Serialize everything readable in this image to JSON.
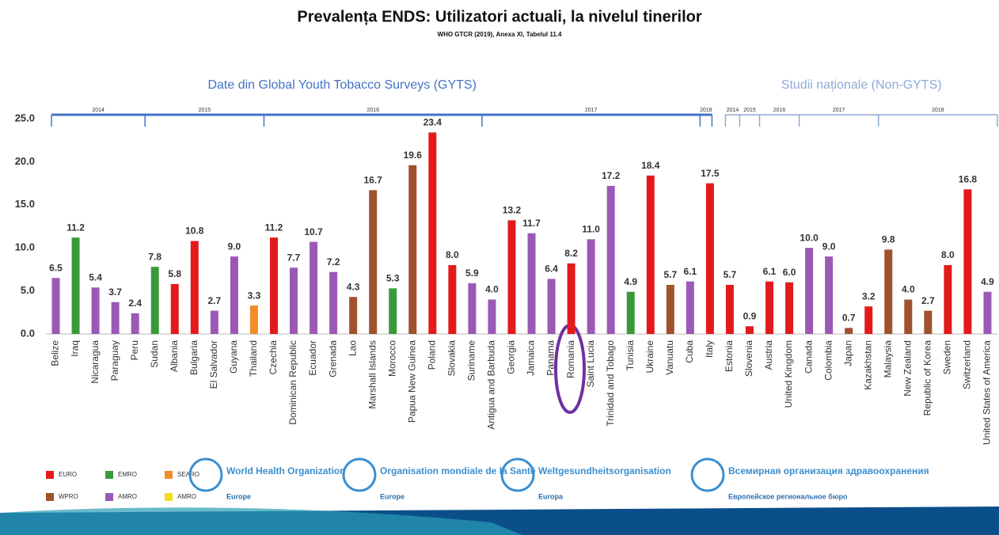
{
  "chart_data": {
    "type": "bar",
    "title": "Prevalența ENDS: Utilizatori actuali, la nivelul tinerilor",
    "subtitle": "WHO GTCR (2019), Anexa XI, Tabelul 11.4",
    "categories": [
      "Belize",
      "Iraq",
      "Nicaragua",
      "Paraguay",
      "Peru",
      "Sudan",
      "Albania",
      "Bulgaria",
      "El Salvador",
      "Guyana",
      "Thailand",
      "Czechia",
      "Dominican Republic",
      "Ecuador",
      "Grenada",
      "Lao",
      "Marshall Islands",
      "Morocco",
      "Papua New Guinea",
      "Poland",
      "Slovakia",
      "Suriname",
      "Antigua and Barbuda",
      "Georgia",
      "Jamaica",
      "Panama",
      "Romania",
      "Saint Lucia",
      "Trinidad and Tobago",
      "Tunisia",
      "Ukraine",
      "Vanuatu",
      "Cuba",
      "Italy",
      "Estonia",
      "Slovenia",
      "Austria",
      "United Kingdom",
      "Canada",
      "Colombia",
      "Japan",
      "Kazakhstan",
      "Malaysia",
      "New Zealand",
      "Republic of Korea",
      "Sweden",
      "Switzerland",
      "United States of America"
    ],
    "values": [
      6.5,
      11.2,
      5.4,
      3.7,
      2.4,
      7.8,
      5.8,
      10.8,
      2.7,
      9.0,
      3.3,
      11.2,
      7.7,
      10.7,
      7.2,
      4.3,
      16.7,
      5.3,
      19.6,
      23.4,
      8.0,
      5.9,
      4.0,
      13.2,
      11.7,
      6.4,
      8.2,
      11.0,
      17.2,
      4.9,
      18.4,
      5.7,
      6.1,
      17.5,
      5.7,
      0.9,
      6.1,
      6.0,
      10.0,
      9.0,
      0.7,
      3.2,
      9.8,
      4.0,
      2.7,
      8.0,
      16.8,
      4.9
    ],
    "value_labels": [
      "6.5",
      "11.2",
      "5.4",
      "3.7",
      "2.4",
      "7.8",
      "5.8",
      "10.8",
      "2.7",
      "9.0",
      "3.3",
      "11.2",
      "7.7",
      "10.7",
      "7.2",
      "4.3",
      "16.7",
      "5.3",
      "19.6",
      "23.4",
      "8.0",
      "5.9",
      "4.0",
      "13.2",
      "11.7",
      "6.4",
      "8.2",
      "11.0",
      "17.2",
      "4.9",
      "18.4",
      "5.7",
      "6.1",
      "17.5",
      "5.7",
      "0.9",
      "6.1",
      "6.0",
      "10.0",
      "9.0",
      "0.7",
      "3.2",
      "9.8",
      "4.0",
      "2.7",
      "8.0",
      "16.8",
      "4.9"
    ],
    "bar_colors": [
      "#9b59b6",
      "#3a9a3a",
      "#9b59b6",
      "#9b59b6",
      "#9b59b6",
      "#3a9a3a",
      "#e31a1c",
      "#e31a1c",
      "#9b59b6",
      "#9b59b6",
      "#f28c28",
      "#e31a1c",
      "#9b59b6",
      "#9b59b6",
      "#9b59b6",
      "#a0522d",
      "#a0522d",
      "#3a9a3a",
      "#a0522d",
      "#e31a1c",
      "#e31a1c",
      "#9b59b6",
      "#9b59b6",
      "#e31a1c",
      "#9b59b6",
      "#9b59b6",
      "#e31a1c",
      "#9b59b6",
      "#9b59b6",
      "#3a9a3a",
      "#e31a1c",
      "#a0522d",
      "#9b59b6",
      "#e31a1c",
      "#e31a1c",
      "#e31a1c",
      "#e31a1c",
      "#e31a1c",
      "#9b59b6",
      "#9b59b6",
      "#a0522d",
      "#e31a1c",
      "#a0522d",
      "#a0522d",
      "#a0522d",
      "#e31a1c",
      "#e31a1c",
      "#9b59b6"
    ],
    "ylim": [
      0,
      25
    ],
    "yticks": [
      {
        "value": 0,
        "label": "0.0"
      },
      {
        "value": 5,
        "label": "5.0"
      },
      {
        "value": 10,
        "label": "10.0"
      },
      {
        "value": 15,
        "label": "15.0"
      },
      {
        "value": 20,
        "label": "20.0"
      },
      {
        "value": 25,
        "label": "25.0"
      }
    ],
    "sections": [
      {
        "title": "Date din Global Youth Tobacco Surveys  (GYTS)",
        "color": "#4472c4",
        "years": [
          {
            "label": "2014",
            "count": 5
          },
          {
            "label": "2015",
            "count": 6
          },
          {
            "label": "2016",
            "count": 11
          },
          {
            "label": "2017",
            "count": 11
          },
          {
            "label": "2018",
            "count": 1
          }
        ]
      },
      {
        "title": "Studii naționale (Non-GYTS)",
        "color": "#8fa9d6",
        "years": [
          {
            "label": "2014",
            "count": 1
          },
          {
            "label": "2015",
            "count": 1
          },
          {
            "label": "2016",
            "count": 2
          },
          {
            "label": "2017",
            "count": 4
          },
          {
            "label": "2018",
            "count": 6
          }
        ]
      }
    ],
    "legend": [
      {
        "name": "EURO",
        "color": "#e31a1c"
      },
      {
        "name": "EMRO",
        "color": "#3a9a3a"
      },
      {
        "name": "SEARO",
        "color": "#f28c28"
      },
      {
        "name": "WPRO",
        "color": "#a0522d"
      },
      {
        "name": "AMRO",
        "color": "#9b59b6"
      },
      {
        "name": "AMRO",
        "color": "#f0e020"
      }
    ]
  },
  "footer": {
    "logos": [
      {
        "name": "World Health Organization",
        "region": "Europe"
      },
      {
        "name": "Organisation mondiale de la Santé",
        "region": "Europe"
      },
      {
        "name": "Weltgesundheitsorganisation",
        "region": "Europa"
      },
      {
        "name": "Всемирная организация здравоохранения",
        "region": "Европейское региональное бюро"
      }
    ]
  }
}
